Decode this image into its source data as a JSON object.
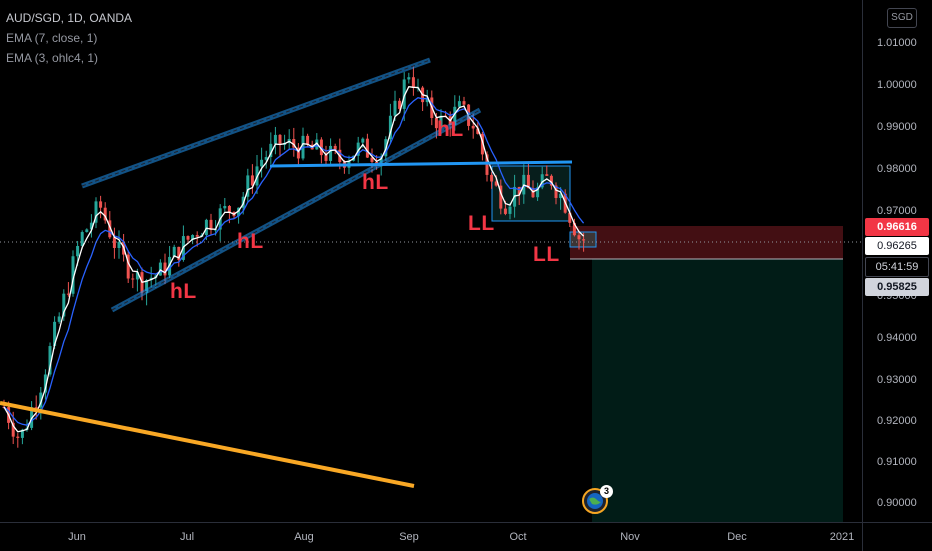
{
  "legend": {
    "symbol": "AUD/SGD, 1D, OANDA",
    "ema1": "EMA (7, close, 1)",
    "ema2": "EMA (3, ohlc4, 1)"
  },
  "currency_button": "SGD",
  "price_ticks": [
    "1.01000",
    "1.00000",
    "0.99000",
    "0.98000",
    "0.97000",
    "0.95000",
    "0.94000",
    "0.93000",
    "0.92000",
    "0.91000",
    "0.90000"
  ],
  "price_badges": {
    "stop": "0.96616",
    "current": "0.96265",
    "countdown": "05:41:59",
    "target": "0.95825"
  },
  "time_labels": [
    "Jun",
    "Jul",
    "Aug",
    "Sep",
    "Oct",
    "Nov",
    "Dec",
    "2021"
  ],
  "annotations": [
    "hL",
    "hL",
    "hL",
    "hL",
    "LL",
    "LL"
  ],
  "event_count": "3",
  "colors": {
    "up": "#26a69a",
    "down": "#ef5350",
    "ema_fast": "#2962ff",
    "ema_slow": "#ffffff",
    "trendline": "#2196f3",
    "long_trend": "#f9a825",
    "stop_zone": "#f23645",
    "target_zone": "#089981",
    "label_red": "#f23645"
  }
}
